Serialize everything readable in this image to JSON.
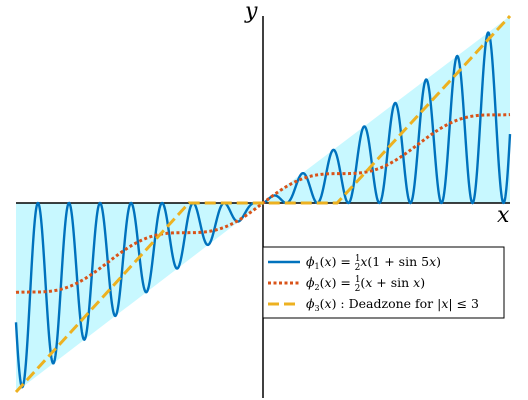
{
  "chart_data": {
    "type": "line",
    "title": "",
    "xlabel": "x",
    "ylabel": "y",
    "xlim": [
      -10,
      10
    ],
    "ylim": [
      -10,
      10
    ],
    "grid": false,
    "axes": "centered",
    "legend_placement": "lower-right",
    "shaded_region": {
      "description_label": "",
      "lower": "min(0, x)",
      "upper": "max(0, x)",
      "color": "#c8f8ff"
    },
    "series": [
      {
        "name": "φ1(x) = ½x(1 + sin 5x)",
        "formula": "0.5*x*(1+sin(5x))",
        "color": "#0072bd",
        "style": "solid"
      },
      {
        "name": "φ2(x) = ½(x + sin x)",
        "formula": "0.5*(x+sin(x))",
        "color": "#d95319",
        "style": "dotted"
      },
      {
        "name": "φ3(x) : Deadzone for |x| ≤ 3",
        "formula": "deadzone(x, 3)",
        "color": "#edb120",
        "style": "dashed"
      }
    ]
  }
}
